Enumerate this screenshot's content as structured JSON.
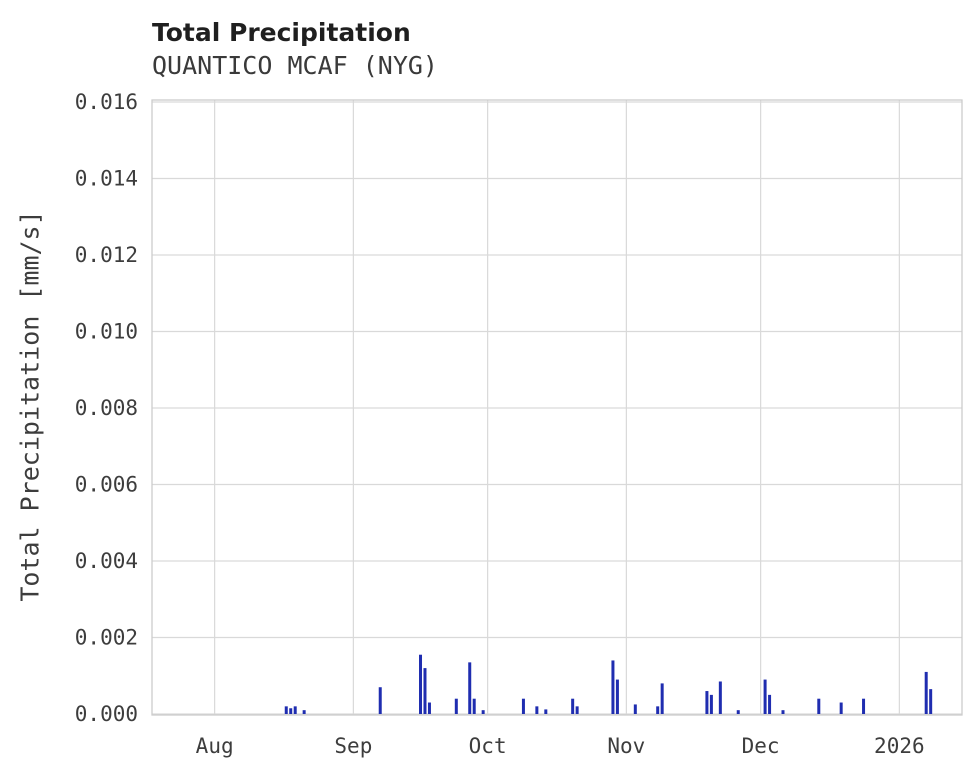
{
  "chart_data": {
    "type": "bar",
    "title": "Total Precipitation",
    "subtitle": "QUANTICO MCAF (NYG)",
    "xlabel": "",
    "ylabel": "Total Precipitation [mm/s]",
    "ylim": [
      0,
      0.016
    ],
    "x_domain": [
      "2025-07-18",
      "2026-01-15"
    ],
    "grid": true,
    "grid_color": "#d9d9d9",
    "border_color": "#cccccc",
    "bar_color": "#1f2db0",
    "legend": "none",
    "yticks": [
      {
        "value": 0.0,
        "label": "0.000"
      },
      {
        "value": 0.002,
        "label": "0.002"
      },
      {
        "value": 0.004,
        "label": "0.004"
      },
      {
        "value": 0.006,
        "label": "0.006"
      },
      {
        "value": 0.008,
        "label": "0.008"
      },
      {
        "value": 0.01,
        "label": "0.010"
      },
      {
        "value": 0.012,
        "label": "0.012"
      },
      {
        "value": 0.014,
        "label": "0.014"
      },
      {
        "value": 0.016,
        "label": "0.016"
      }
    ],
    "xticks": [
      {
        "date": "2025-08-01",
        "label": "Aug"
      },
      {
        "date": "2025-09-01",
        "label": "Sep"
      },
      {
        "date": "2025-10-01",
        "label": "Oct"
      },
      {
        "date": "2025-11-01",
        "label": "Nov"
      },
      {
        "date": "2025-12-01",
        "label": "Dec"
      },
      {
        "date": "2026-01-01",
        "label": "2026"
      }
    ],
    "points": [
      {
        "date": "2025-08-17",
        "value": 0.0002
      },
      {
        "date": "2025-08-18",
        "value": 0.00015
      },
      {
        "date": "2025-08-19",
        "value": 0.0002
      },
      {
        "date": "2025-08-21",
        "value": 0.0001
      },
      {
        "date": "2025-09-07",
        "value": 0.0007
      },
      {
        "date": "2025-09-16",
        "value": 0.00155
      },
      {
        "date": "2025-09-17",
        "value": 0.0012
      },
      {
        "date": "2025-09-18",
        "value": 0.0003
      },
      {
        "date": "2025-09-24",
        "value": 0.0004
      },
      {
        "date": "2025-09-27",
        "value": 0.00135
      },
      {
        "date": "2025-09-28",
        "value": 0.0004
      },
      {
        "date": "2025-09-30",
        "value": 0.0001
      },
      {
        "date": "2025-10-09",
        "value": 0.0004
      },
      {
        "date": "2025-10-12",
        "value": 0.0002
      },
      {
        "date": "2025-10-14",
        "value": 0.00012
      },
      {
        "date": "2025-10-20",
        "value": 0.0004
      },
      {
        "date": "2025-10-21",
        "value": 0.0002
      },
      {
        "date": "2025-10-29",
        "value": 0.0014
      },
      {
        "date": "2025-10-30",
        "value": 0.0009
      },
      {
        "date": "2025-11-03",
        "value": 0.00025
      },
      {
        "date": "2025-11-08",
        "value": 0.0002
      },
      {
        "date": "2025-11-09",
        "value": 0.0008
      },
      {
        "date": "2025-11-19",
        "value": 0.0006
      },
      {
        "date": "2025-11-20",
        "value": 0.0005
      },
      {
        "date": "2025-11-22",
        "value": 0.00085
      },
      {
        "date": "2025-11-26",
        "value": 0.0001
      },
      {
        "date": "2025-12-02",
        "value": 0.0009
      },
      {
        "date": "2025-12-03",
        "value": 0.0005
      },
      {
        "date": "2025-12-06",
        "value": 0.0001
      },
      {
        "date": "2025-12-14",
        "value": 0.0004
      },
      {
        "date": "2025-12-19",
        "value": 0.0003
      },
      {
        "date": "2025-12-24",
        "value": 0.0004
      },
      {
        "date": "2026-01-07",
        "value": 0.0011
      },
      {
        "date": "2026-01-08",
        "value": 0.00065
      }
    ]
  }
}
